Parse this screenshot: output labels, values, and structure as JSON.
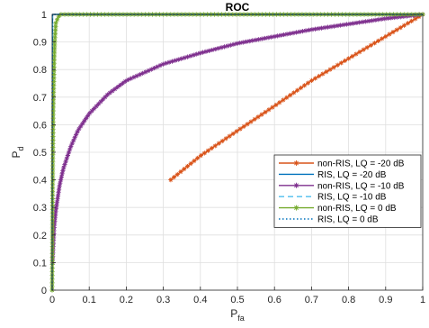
{
  "chart_data": {
    "type": "line",
    "title": "ROC",
    "xlabel": "P",
    "xlabel_sub": "fa",
    "ylabel": "P",
    "ylabel_sub": "d",
    "xlim": [
      0,
      1
    ],
    "ylim": [
      0,
      1
    ],
    "xticks": [
      "0",
      "0.1",
      "0.2",
      "0.3",
      "0.4",
      "0.5",
      "0.6",
      "0.7",
      "0.8",
      "0.9",
      "1"
    ],
    "yticks": [
      "0",
      "0.1",
      "0.2",
      "0.3",
      "0.4",
      "0.5",
      "0.6",
      "0.7",
      "0.8",
      "0.9",
      "1"
    ],
    "grid": true,
    "legend_position": "lower-right",
    "series": [
      {
        "name": "non-RIS, LQ = -20 dB",
        "color": "#D95319",
        "style": "solid-star",
        "x": [
          0.32,
          0.4,
          0.5,
          0.6,
          0.7,
          0.8,
          0.9,
          1.0
        ],
        "y": [
          0.4,
          0.487,
          0.578,
          0.668,
          0.76,
          0.84,
          0.92,
          1.0
        ]
      },
      {
        "name": "RIS, LQ = -20 dB",
        "color": "#0072BD",
        "style": "solid",
        "x": [
          0,
          0.001,
          1
        ],
        "y": [
          0,
          1,
          1
        ]
      },
      {
        "name": "non-RIS, LQ = -10 dB",
        "color": "#7E2F8E",
        "style": "solid-star",
        "x": [
          0.001,
          0.005,
          0.01,
          0.02,
          0.03,
          0.05,
          0.07,
          0.1,
          0.15,
          0.2,
          0.3,
          0.4,
          0.5,
          0.6,
          0.7,
          0.8,
          0.9,
          1.0
        ],
        "y": [
          0.1,
          0.22,
          0.29,
          0.38,
          0.44,
          0.52,
          0.58,
          0.64,
          0.71,
          0.76,
          0.82,
          0.86,
          0.895,
          0.92,
          0.945,
          0.965,
          0.985,
          1.0
        ]
      },
      {
        "name": "RIS, LQ = -10 dB",
        "color": "#4DBEEE",
        "style": "dashed",
        "x": [
          0,
          0.001,
          1
        ],
        "y": [
          0,
          1,
          1
        ]
      },
      {
        "name": "non-RIS, LQ = 0 dB",
        "color": "#77AC30",
        "style": "solid-star",
        "x": [
          0,
          0.0005,
          0.001,
          0.002,
          0.003,
          0.005,
          0.007,
          0.01,
          0.02,
          1.0
        ],
        "y": [
          0,
          0.1,
          0.3,
          0.5,
          0.65,
          0.8,
          0.9,
          0.97,
          1.0,
          1.0
        ]
      },
      {
        "name": "RIS, LQ = 0 dB",
        "color": "#0072BD",
        "style": "dotted",
        "x": [
          0,
          0.001,
          1
        ],
        "y": [
          0,
          1,
          1
        ]
      }
    ]
  }
}
